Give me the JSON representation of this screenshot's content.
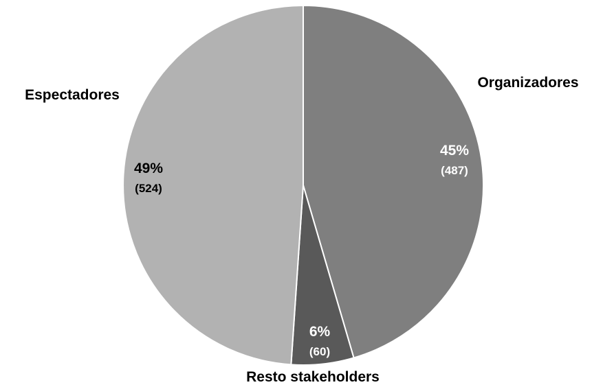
{
  "chart_data": {
    "type": "pie",
    "title": "",
    "start_angle_deg": 0,
    "direction": "clockwise",
    "legend": "none",
    "slices": [
      {
        "label": "Organizadores",
        "value": 487,
        "percent_label": "45%",
        "count_label": "(487)",
        "color": "#7f7f7f",
        "text_color": "#ffffff"
      },
      {
        "label": "Resto stakeholders",
        "value": 60,
        "percent_label": "6%",
        "count_label": "(60)",
        "color": "#595959",
        "text_color": "#ffffff"
      },
      {
        "label": "Espectadores",
        "value": 524,
        "percent_label": "49%",
        "count_label": "(524)",
        "color": "#b2b2b2",
        "text_color": "#000000"
      }
    ]
  }
}
